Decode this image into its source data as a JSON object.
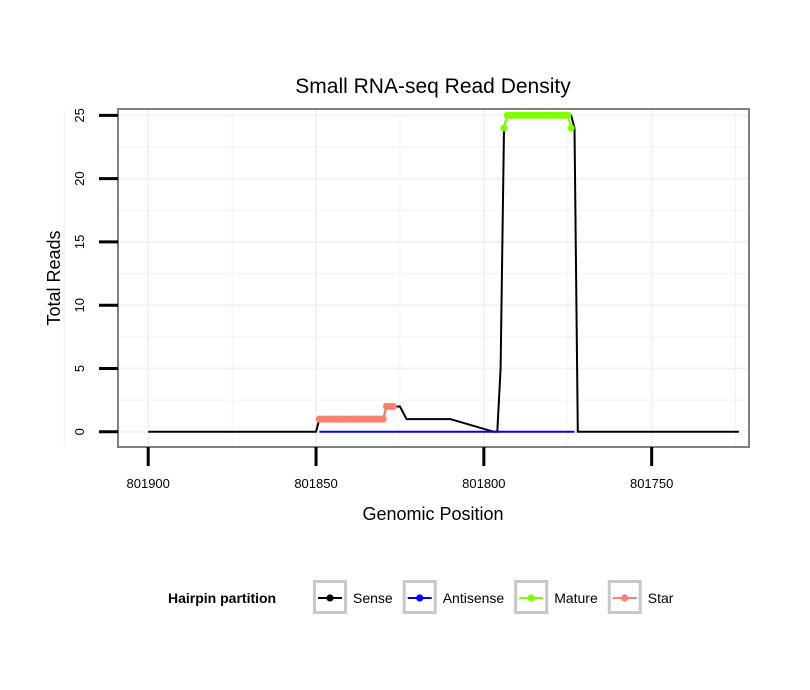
{
  "chart_data": {
    "type": "line",
    "title": "Small RNA-seq Read Density",
    "xlabel": "Genomic Position",
    "ylabel": "Total Reads",
    "x_reversed": true,
    "xlim": [
      801909,
      801721
    ],
    "ylim": [
      -1.2,
      25.5
    ],
    "x_ticks": [
      801900,
      801850,
      801800,
      801750
    ],
    "x_tick_labels": [
      "801900",
      "801850",
      "801800",
      "801750"
    ],
    "y_ticks": [
      0,
      5,
      10,
      15,
      20,
      25
    ],
    "y_tick_labels": [
      "0",
      "5",
      "10",
      "15",
      "20",
      "25"
    ],
    "grid": true,
    "legend": {
      "title": "Hairpin partition",
      "position": "bottom",
      "entries": [
        {
          "name": "Sense",
          "color": "#000000"
        },
        {
          "name": "Antisense",
          "color": "#0000ff"
        },
        {
          "name": "Mature",
          "color": "#7fff00"
        },
        {
          "name": "Star",
          "color": "#fa8072"
        }
      ]
    },
    "series": [
      {
        "name": "Sense",
        "color": "#000000",
        "x": [
          801900,
          801850,
          801849,
          801830,
          801829,
          801825,
          801823,
          801810,
          801797,
          801796,
          801795,
          801794,
          801793,
          801774,
          801773,
          801772,
          801724
        ],
        "y": [
          0,
          0,
          1,
          1,
          2,
          2,
          1,
          1,
          0,
          0,
          5,
          24,
          25,
          25,
          24,
          0,
          0
        ]
      },
      {
        "name": "Antisense",
        "color": "#0000ff",
        "x": [
          801849,
          801773
        ],
        "y": [
          0,
          0
        ]
      },
      {
        "name": "Mature",
        "color": "#7fff00",
        "x": [
          801794,
          801793,
          801792,
          801791,
          801790,
          801789,
          801788,
          801787,
          801786,
          801785,
          801784,
          801783,
          801782,
          801781,
          801780,
          801779,
          801778,
          801777,
          801776,
          801775,
          801774
        ],
        "y": [
          24,
          25,
          25,
          25,
          25,
          25,
          25,
          25,
          25,
          25,
          25,
          25,
          25,
          25,
          25,
          25,
          25,
          25,
          25,
          25,
          24
        ]
      },
      {
        "name": "Star",
        "color": "#fa8072",
        "x": [
          801849,
          801848,
          801847,
          801846,
          801845,
          801844,
          801843,
          801842,
          801841,
          801840,
          801839,
          801838,
          801837,
          801836,
          801835,
          801834,
          801833,
          801832,
          801831,
          801830,
          801829,
          801828,
          801827
        ],
        "y": [
          1,
          1,
          1,
          1,
          1,
          1,
          1,
          1,
          1,
          1,
          1,
          1,
          1,
          1,
          1,
          1,
          1,
          1,
          1,
          1,
          2,
          2,
          2
        ]
      }
    ]
  }
}
